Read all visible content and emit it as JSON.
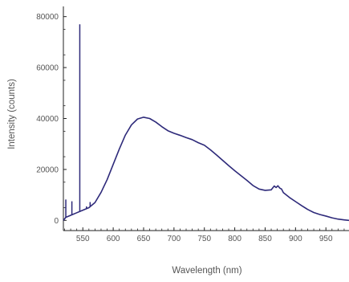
{
  "chart_data": {
    "type": "line",
    "title": "",
    "xlabel": "Wavelength (nm)",
    "ylabel": "Intensity (counts)",
    "xlim": [
      518,
      988
    ],
    "ylim": [
      -4000,
      84000
    ],
    "xticks": [
      550,
      600,
      650,
      700,
      750,
      800,
      850,
      900,
      950
    ],
    "yticks": [
      0,
      20000,
      40000,
      60000,
      80000
    ],
    "x_tick_labels": [
      "550",
      "600",
      "650",
      "700",
      "750",
      "800",
      "850",
      "900",
      "950"
    ],
    "y_tick_labels": [
      "0",
      "20000",
      "40000",
      "60000",
      "80000"
    ],
    "grid": false,
    "legend": "none",
    "line_color": "#2e2a7a",
    "series": [
      {
        "x": [
          518,
          522,
          530,
          540,
          550,
          560,
          570,
          580,
          590,
          600,
          610,
          620,
          630,
          640,
          650,
          660,
          670,
          680,
          690,
          700,
          710,
          720,
          730,
          740,
          750,
          760,
          770,
          780,
          790,
          800,
          810,
          820,
          830,
          840,
          850,
          860,
          865,
          868,
          871,
          874,
          877,
          880,
          890,
          900,
          910,
          920,
          930,
          940,
          950,
          960,
          970,
          980,
          988
        ],
        "y": [
          0,
          1200,
          2000,
          3000,
          4000,
          5000,
          7000,
          11000,
          16000,
          22000,
          28000,
          33500,
          37500,
          39800,
          40500,
          40000,
          38600,
          36800,
          35200,
          34200,
          33400,
          32500,
          31700,
          30500,
          29500,
          27700,
          25700,
          23600,
          21500,
          19500,
          17600,
          15700,
          13700,
          12300,
          11800,
          12000,
          13500,
          12900,
          13600,
          12700,
          12300,
          10900,
          9000,
          7400,
          5800,
          4300,
          3100,
          2300,
          1700,
          1000,
          500,
          200,
          0
        ]
      }
    ],
    "spikes": [
      {
        "x": 522,
        "y": 8200
      },
      {
        "x": 532,
        "y": 7500
      },
      {
        "x": 545,
        "y": 77000
      },
      {
        "x": 556,
        "y": 5500
      },
      {
        "x": 562,
        "y": 7200
      }
    ]
  }
}
